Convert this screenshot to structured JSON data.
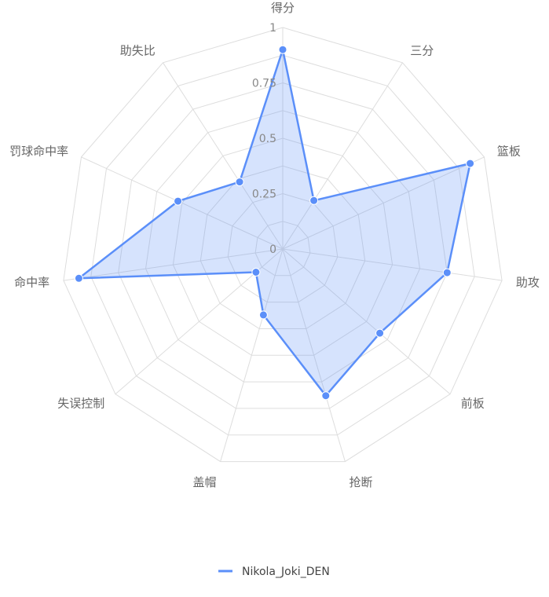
{
  "chart_data": {
    "type": "radar",
    "indicators": [
      "得分",
      "三分",
      "篮板",
      "助攻",
      "前板",
      "抢断",
      "盖帽",
      "失误控制",
      "命中率",
      "罚球命中率",
      "助失比"
    ],
    "tick_labels": [
      "0",
      "0.25",
      "0.5",
      "0.75",
      "1"
    ],
    "range": [
      0,
      1
    ],
    "series": [
      {
        "name": "Nikola_Joki_DEN",
        "values": [
          0.9,
          0.26,
          0.93,
          0.75,
          0.58,
          0.69,
          0.31,
          0.16,
          0.93,
          0.52,
          0.36
        ],
        "color": "#5b8ff9",
        "fill": "#5b8ff9"
      }
    ],
    "legend_position": "bottom-center",
    "grid_color": "#dddddd"
  }
}
